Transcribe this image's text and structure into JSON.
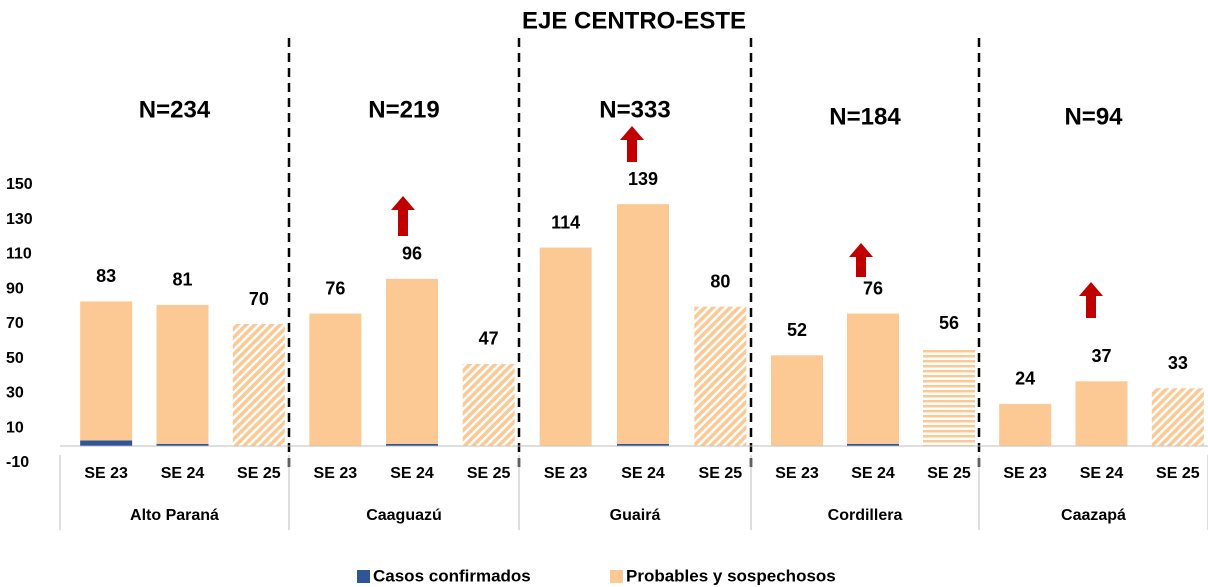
{
  "chart_data": {
    "type": "stacked_bar",
    "title": "EJE CENTRO-ESTE",
    "groups": [
      "Alto Paraná",
      "Caaguazú",
      "Guairá",
      "Cordillera",
      "Caazapá"
    ],
    "group_totals": [
      "N=234",
      "N=219",
      "N=333",
      "N=184",
      "N=94"
    ],
    "categories": [
      "SE 23",
      "SE 24",
      "SE 25",
      "SE 23",
      "SE 24",
      "SE 25",
      "SE 23",
      "SE 24",
      "SE 25",
      "SE 23",
      "SE 24",
      "SE 25",
      "SE 23",
      "SE 24",
      "SE 25"
    ],
    "series": [
      {
        "name": "Casos confirmados",
        "color": "#2f5597",
        "values": [
          3,
          1,
          0,
          0,
          1,
          0,
          0,
          1,
          0,
          0,
          1,
          0,
          0,
          0,
          0
        ]
      },
      {
        "name": "Probables y sospechosos",
        "color": "#fcc995",
        "values": [
          80,
          80,
          70,
          76,
          95,
          47,
          114,
          138,
          80,
          52,
          75,
          56,
          24,
          37,
          33
        ]
      }
    ],
    "totals": [
      83,
      81,
      70,
      76,
      96,
      47,
      114,
      139,
      80,
      52,
      76,
      56,
      24,
      37,
      33
    ],
    "ylim": [
      -10,
      150
    ],
    "yticks": [
      -10,
      10,
      30,
      50,
      70,
      90,
      110,
      130,
      150
    ],
    "grid": false,
    "legend": "bottom"
  }
}
